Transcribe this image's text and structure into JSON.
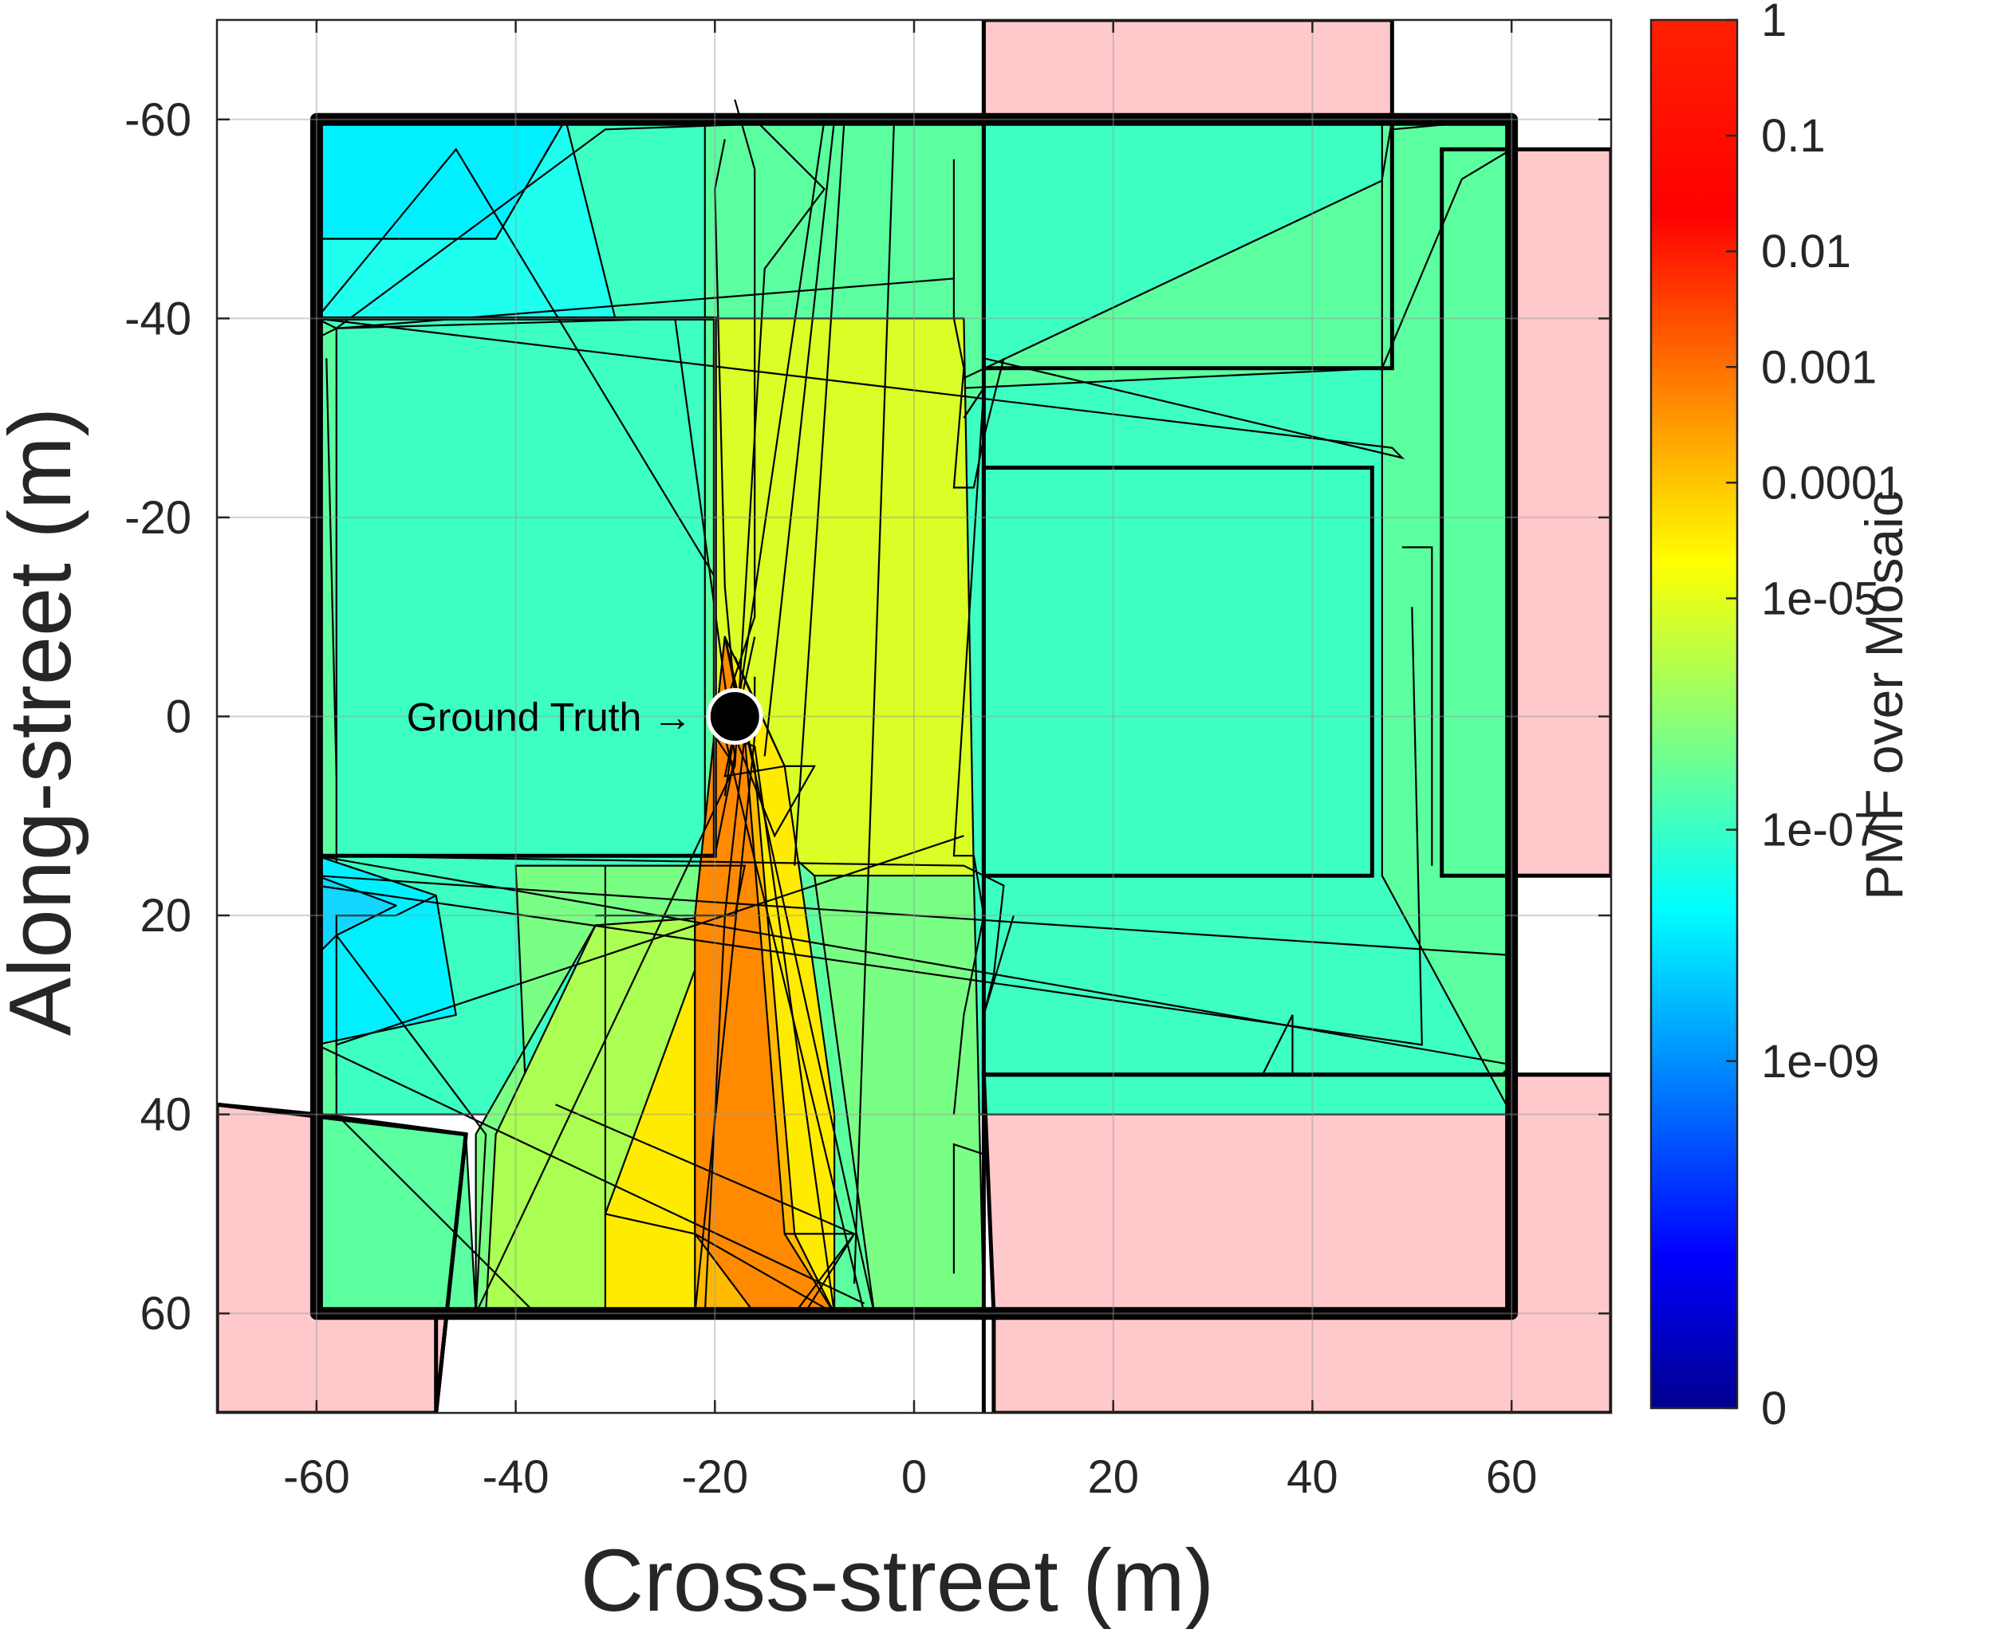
{
  "chart_data": {
    "type": "heatmap",
    "xlabel": "Cross-street (m)",
    "ylabel": "Along-street (m)",
    "xlim": [
      -70,
      70
    ],
    "ylim": [
      -70,
      70
    ],
    "y_reversed": true,
    "xticks": [
      -60,
      -40,
      -20,
      0,
      20,
      40,
      60
    ],
    "yticks": [
      -60,
      -40,
      -20,
      0,
      20,
      40,
      60
    ],
    "grid": true,
    "colorbar": {
      "label": "PMF over Mosaic",
      "colormap": "jet",
      "scale": "log",
      "ticks": [
        {
          "label": "1",
          "exp": 0
        },
        {
          "label": "0.1",
          "exp": -1
        },
        {
          "label": "0.01",
          "exp": -2
        },
        {
          "label": "0.001",
          "exp": -3
        },
        {
          "label": "0.0001",
          "exp": -4
        },
        {
          "label": "1e-05",
          "exp": -5
        },
        {
          "label": "1e-07",
          "exp": -7
        },
        {
          "label": "1e-09",
          "exp": -9
        },
        {
          "label": "0",
          "exp": -12
        }
      ]
    },
    "colors": {
      "building": "#ffc9cc",
      "cyan": "#00f0ff",
      "aqua": "#1efff0",
      "teal": "#3dffc2",
      "mint": "#5cffa0",
      "lgreen": "#7aff85",
      "lime": "#abff52",
      "yellowgreen": "#d9ff26",
      "yellow": "#ffeb00",
      "amber": "#ffba00",
      "orange": "#ff8a00",
      "cyanblue": "#12d6ff"
    },
    "buildings": [
      {
        "pts": [
          [
            -70,
            39
          ],
          [
            -60,
            40
          ],
          [
            -45,
            42
          ],
          [
            -48,
            70
          ],
          [
            -70,
            70
          ]
        ]
      },
      {
        "pts": [
          [
            -60,
            -40
          ],
          [
            -20,
            -40
          ],
          [
            -20,
            14
          ],
          [
            -60,
            14
          ]
        ]
      },
      {
        "pts": [
          [
            7,
            -70
          ],
          [
            48,
            -70
          ],
          [
            48,
            -35
          ],
          [
            7,
            -35
          ]
        ]
      },
      {
        "pts": [
          [
            7,
            -25
          ],
          [
            46,
            -25
          ],
          [
            46,
            16
          ],
          [
            7,
            16
          ]
        ]
      },
      {
        "pts": [
          [
            53,
            -57
          ],
          [
            70,
            -57
          ],
          [
            70,
            16
          ],
          [
            53,
            16
          ]
        ]
      },
      {
        "pts": [
          [
            7,
            36
          ],
          [
            70,
            36
          ],
          [
            70,
            70
          ],
          [
            8,
            70
          ],
          [
            8,
            60
          ]
        ]
      }
    ],
    "regions": [
      {
        "color": "teal",
        "pts": [
          [
            -60,
            -60
          ],
          [
            60,
            -60
          ],
          [
            60,
            40
          ],
          [
            -60,
            40
          ]
        ]
      },
      {
        "color": "aqua",
        "pts": [
          [
            -60,
            -60
          ],
          [
            -35,
            -60
          ],
          [
            -30,
            -40
          ],
          [
            -60,
            -40
          ]
        ]
      },
      {
        "color": "cyan",
        "pts": [
          [
            -60,
            -60
          ],
          [
            -35,
            -60
          ],
          [
            -42,
            -48
          ],
          [
            -60,
            -48
          ]
        ]
      },
      {
        "color": "mint",
        "pts": [
          [
            -21,
            -60
          ],
          [
            7,
            -60
          ],
          [
            7,
            -33
          ],
          [
            5,
            -30
          ],
          [
            4,
            60
          ],
          [
            -21,
            60
          ]
        ]
      },
      {
        "color": "mint",
        "pts": [
          [
            5,
            -34
          ],
          [
            60,
            -60
          ],
          [
            60,
            -40
          ],
          [
            54,
            -55
          ],
          [
            47,
            -35
          ],
          [
            5,
            -33
          ]
        ]
      },
      {
        "color": "mint",
        "pts": [
          [
            47,
            -60
          ],
          [
            60,
            -60
          ],
          [
            60,
            40
          ],
          [
            47,
            16
          ]
        ]
      },
      {
        "color": "mint",
        "pts": [
          [
            -60,
            -40
          ],
          [
            -58,
            -39
          ],
          [
            -58,
            40
          ],
          [
            -60,
            40
          ]
        ]
      },
      {
        "color": "mint",
        "pts": [
          [
            -60,
            40
          ],
          [
            -45,
            42
          ],
          [
            -44,
            60
          ],
          [
            -60,
            60
          ]
        ]
      },
      {
        "color": "cyan",
        "pts": [
          [
            -60,
            14
          ],
          [
            -48,
            18
          ],
          [
            -46,
            30
          ],
          [
            -60,
            33
          ]
        ]
      },
      {
        "color": "cyanblue",
        "pts": [
          [
            -60,
            16
          ],
          [
            -52,
            19
          ],
          [
            -58,
            22
          ],
          [
            -60,
            24
          ]
        ]
      },
      {
        "color": "lgreen",
        "pts": [
          [
            -40,
            15
          ],
          [
            -18,
            15
          ],
          [
            -18,
            20
          ],
          [
            -32,
            21
          ],
          [
            -44,
            42
          ],
          [
            -44,
            60
          ],
          [
            -38,
            60
          ]
        ]
      },
      {
        "color": "lime",
        "pts": [
          [
            -32,
            21
          ],
          [
            -18,
            20
          ],
          [
            -8,
            60
          ],
          [
            -43,
            60
          ],
          [
            -42,
            42
          ]
        ]
      },
      {
        "color": "yellowgreen",
        "pts": [
          [
            -20,
            -40
          ],
          [
            5,
            -40
          ],
          [
            6,
            16
          ],
          [
            -10,
            16
          ],
          [
            -19,
            8
          ],
          [
            -20,
            0
          ]
        ]
      },
      {
        "color": "lgreen",
        "pts": [
          [
            -10,
            16
          ],
          [
            6,
            16
          ],
          [
            7,
            60
          ],
          [
            -4,
            60
          ]
        ]
      },
      {
        "color": "yellow",
        "pts": [
          [
            -19,
            -8
          ],
          [
            -13,
            5
          ],
          [
            -8,
            40
          ],
          [
            -8,
            60
          ],
          [
            -31,
            60
          ],
          [
            -31,
            50
          ],
          [
            -20,
            20
          ]
        ]
      },
      {
        "color": "amber",
        "pts": [
          [
            -19,
            -8
          ],
          [
            -16,
            5
          ],
          [
            -12,
            52
          ],
          [
            -8,
            60
          ],
          [
            -22,
            60
          ],
          [
            -22,
            20
          ]
        ]
      },
      {
        "color": "orange",
        "pts": [
          [
            -19,
            -8
          ],
          [
            -17,
            2
          ],
          [
            -13,
            52
          ],
          [
            -8,
            60
          ],
          [
            -16,
            60
          ],
          [
            -22,
            52
          ],
          [
            -22,
            20
          ]
        ]
      }
    ],
    "thin_lines": [
      [
        [
          -60,
          -48
        ],
        [
          -42,
          -48
        ],
        [
          -35,
          -60
        ]
      ],
      [
        [
          -58,
          -39
        ],
        [
          -31,
          -59
        ],
        [
          -3,
          -60
        ]
      ],
      [
        [
          -60,
          -40
        ],
        [
          -46,
          -57
        ],
        [
          -20,
          -14
        ]
      ],
      [
        [
          -58,
          -39
        ],
        [
          4,
          -44
        ]
      ],
      [
        [
          -58,
          -39
        ],
        [
          -24,
          -40
        ],
        [
          -18,
          4
        ],
        [
          -20,
          14
        ]
      ],
      [
        [
          -59,
          -36
        ],
        [
          -58,
          6
        ]
      ],
      [
        [
          -60,
          -40
        ],
        [
          48,
          -27
        ],
        [
          49,
          -26
        ],
        [
          7,
          -36
        ]
      ],
      [
        [
          -19,
          -58
        ],
        [
          -20,
          -53
        ],
        [
          -19,
          -13
        ],
        [
          -18,
          -2
        ]
      ],
      [
        [
          -18,
          -62
        ],
        [
          -16,
          -55
        ],
        [
          -16,
          -10
        ],
        [
          -20,
          2
        ],
        [
          -18,
          5
        ]
      ],
      [
        [
          -16,
          -60
        ],
        [
          -9,
          -53
        ],
        [
          -15,
          -45
        ],
        [
          -18,
          5
        ]
      ],
      [
        [
          -13,
          -60
        ],
        [
          -9,
          -60
        ],
        [
          -19,
          8
        ]
      ],
      [
        [
          -8,
          -60
        ],
        [
          -15,
          4
        ]
      ],
      [
        [
          -7,
          -60
        ],
        [
          -12,
          15
        ]
      ],
      [
        [
          -16,
          -8
        ],
        [
          -19,
          6
        ],
        [
          -13,
          5
        ],
        [
          -18,
          -6
        ]
      ],
      [
        [
          -21,
          60
        ],
        [
          -19,
          20
        ],
        [
          -17,
          2
        ]
      ],
      [
        [
          -13,
          5
        ],
        [
          -10,
          5
        ],
        [
          -14,
          12
        ],
        [
          -18,
          2
        ]
      ],
      [
        [
          -13,
          52
        ],
        [
          -6,
          52
        ],
        [
          -11,
          60
        ]
      ],
      [
        [
          -22,
          60
        ],
        [
          -16,
          2
        ],
        [
          -16,
          -4
        ]
      ],
      [
        [
          -8,
          60
        ],
        [
          -16,
          3
        ],
        [
          -19,
          2
        ]
      ],
      [
        [
          -4,
          60
        ],
        [
          -19,
          -8
        ]
      ],
      [
        [
          -2,
          -60
        ],
        [
          -6,
          57
        ]
      ],
      [
        [
          4,
          -56
        ],
        [
          4,
          -40
        ],
        [
          5,
          -35
        ],
        [
          4,
          -23
        ],
        [
          6,
          -23
        ],
        [
          7,
          -28
        ]
      ],
      [
        [
          5,
          -30
        ],
        [
          7,
          -33
        ],
        [
          4,
          14
        ],
        [
          6,
          14
        ],
        [
          7,
          20
        ],
        [
          5,
          30
        ],
        [
          4,
          40
        ]
      ],
      [
        [
          -60,
          14
        ],
        [
          5,
          15
        ],
        [
          9,
          17
        ],
        [
          8,
          26
        ],
        [
          7,
          30
        ],
        [
          10,
          20
        ]
      ],
      [
        [
          -58,
          22
        ],
        [
          -43,
          42
        ],
        [
          -44,
          60
        ],
        [
          -47,
          60
        ]
      ],
      [
        [
          -48,
          18
        ],
        [
          -52,
          20
        ],
        [
          -58,
          20
        ],
        [
          -58,
          36
        ]
      ],
      [
        [
          -31,
          15
        ],
        [
          -31,
          50
        ],
        [
          -22,
          52
        ],
        [
          -8,
          60
        ]
      ],
      [
        [
          -40,
          15
        ],
        [
          -17,
          15
        ],
        [
          -18,
          20
        ],
        [
          -32,
          20
        ]
      ],
      [
        [
          -60,
          16
        ],
        [
          60,
          24
        ]
      ],
      [
        [
          -60,
          33
        ],
        [
          -41,
          42
        ],
        [
          -5,
          59
        ]
      ],
      [
        [
          -60,
          14
        ],
        [
          60,
          35
        ],
        [
          59,
          36
        ]
      ],
      [
        [
          -58,
          33
        ],
        [
          5,
          12
        ]
      ],
      [
        [
          -58,
          40
        ],
        [
          -38,
          60
        ]
      ],
      [
        [
          -33,
          60
        ],
        [
          -5,
          60
        ],
        [
          -19,
          2
        ]
      ],
      [
        [
          -44,
          60
        ],
        [
          -18,
          5
        ]
      ],
      [
        [
          -36,
          39
        ],
        [
          -6,
          52
        ],
        [
          -12,
          60
        ]
      ],
      [
        [
          35,
          36
        ],
        [
          38,
          30
        ],
        [
          38,
          36
        ]
      ],
      [
        [
          49,
          -17
        ],
        [
          52,
          -17
        ],
        [
          52,
          15
        ]
      ],
      [
        [
          50,
          -11
        ],
        [
          51,
          33
        ],
        [
          -60,
          17
        ]
      ],
      [
        [
          60,
          -60
        ],
        [
          60,
          -57
        ],
        [
          55,
          -54
        ],
        [
          47,
          -35
        ]
      ],
      [
        [
          48,
          -59
        ],
        [
          59,
          -60
        ]
      ],
      [
        [
          48,
          -60
        ],
        [
          47,
          -54
        ]
      ],
      [
        [
          -60,
          -40
        ],
        [
          -58,
          -39
        ],
        [
          -60,
          -38
        ]
      ],
      [
        [
          7,
          -28
        ],
        [
          9,
          -36
        ]
      ],
      [
        [
          4,
          56
        ],
        [
          4,
          43
        ],
        [
          7,
          44
        ]
      ]
    ],
    "thick_lines": [
      {
        "w": 16,
        "pts": [
          [
            -60,
            -60
          ],
          [
            60,
            -60
          ],
          [
            60,
            60
          ],
          [
            -60,
            60
          ],
          [
            -60,
            -60
          ]
        ]
      },
      {
        "w": 5,
        "pts": [
          [
            7,
            -70
          ],
          [
            7,
            -60
          ],
          [
            7,
            70
          ]
        ]
      },
      {
        "w": 5,
        "pts": [
          [
            -70,
            39
          ],
          [
            -45,
            42
          ],
          [
            -48,
            70
          ]
        ]
      },
      {
        "w": 5,
        "pts": [
          [
            -48,
            70
          ],
          [
            -48,
            60
          ]
        ]
      },
      {
        "w": 5,
        "pts": [
          [
            7,
            36
          ],
          [
            70,
            36
          ]
        ]
      }
    ],
    "annotation": {
      "text": "Ground Truth →",
      "x": -18,
      "y": 0
    }
  }
}
